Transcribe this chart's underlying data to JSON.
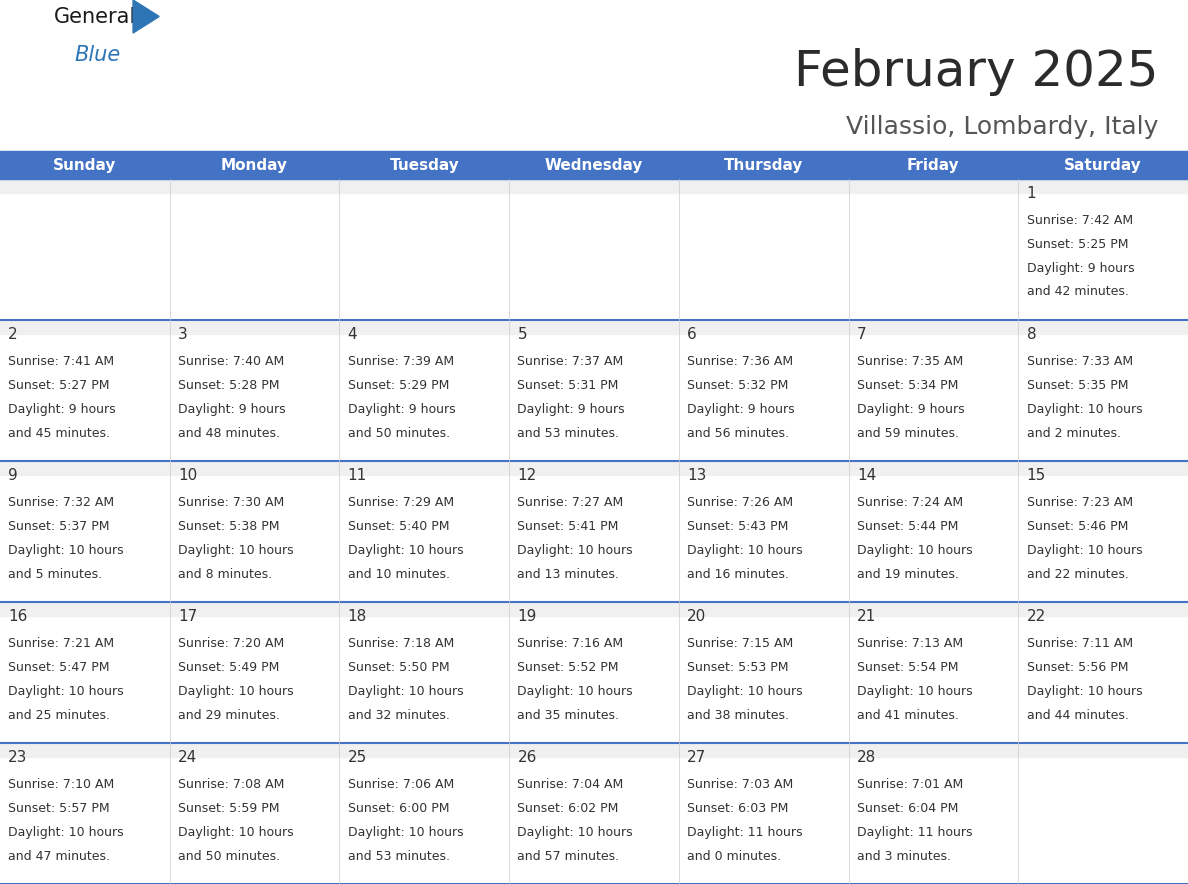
{
  "title": "February 2025",
  "subtitle": "Villassio, Lombardy, Italy",
  "header_bg": "#4472C4",
  "header_text_color": "#FFFFFF",
  "separator_color": "#4472C4",
  "cell_bg": "#FFFFFF",
  "cell_top_stripe": "#EFEFEF",
  "text_color": "#333333",
  "day_headers": [
    "Sunday",
    "Monday",
    "Tuesday",
    "Wednesday",
    "Thursday",
    "Friday",
    "Saturday"
  ],
  "days": [
    {
      "day": 1,
      "col": 6,
      "row": 0,
      "sunrise": "7:42 AM",
      "sunset": "5:25 PM",
      "daylight_h": "9 hours",
      "daylight_m": "42 minutes."
    },
    {
      "day": 2,
      "col": 0,
      "row": 1,
      "sunrise": "7:41 AM",
      "sunset": "5:27 PM",
      "daylight_h": "9 hours",
      "daylight_m": "45 minutes."
    },
    {
      "day": 3,
      "col": 1,
      "row": 1,
      "sunrise": "7:40 AM",
      "sunset": "5:28 PM",
      "daylight_h": "9 hours",
      "daylight_m": "48 minutes."
    },
    {
      "day": 4,
      "col": 2,
      "row": 1,
      "sunrise": "7:39 AM",
      "sunset": "5:29 PM",
      "daylight_h": "9 hours",
      "daylight_m": "50 minutes."
    },
    {
      "day": 5,
      "col": 3,
      "row": 1,
      "sunrise": "7:37 AM",
      "sunset": "5:31 PM",
      "daylight_h": "9 hours",
      "daylight_m": "53 minutes."
    },
    {
      "day": 6,
      "col": 4,
      "row": 1,
      "sunrise": "7:36 AM",
      "sunset": "5:32 PM",
      "daylight_h": "9 hours",
      "daylight_m": "56 minutes."
    },
    {
      "day": 7,
      "col": 5,
      "row": 1,
      "sunrise": "7:35 AM",
      "sunset": "5:34 PM",
      "daylight_h": "9 hours",
      "daylight_m": "59 minutes."
    },
    {
      "day": 8,
      "col": 6,
      "row": 1,
      "sunrise": "7:33 AM",
      "sunset": "5:35 PM",
      "daylight_h": "10 hours",
      "daylight_m": "2 minutes."
    },
    {
      "day": 9,
      "col": 0,
      "row": 2,
      "sunrise": "7:32 AM",
      "sunset": "5:37 PM",
      "daylight_h": "10 hours",
      "daylight_m": "5 minutes."
    },
    {
      "day": 10,
      "col": 1,
      "row": 2,
      "sunrise": "7:30 AM",
      "sunset": "5:38 PM",
      "daylight_h": "10 hours",
      "daylight_m": "8 minutes."
    },
    {
      "day": 11,
      "col": 2,
      "row": 2,
      "sunrise": "7:29 AM",
      "sunset": "5:40 PM",
      "daylight_h": "10 hours",
      "daylight_m": "10 minutes."
    },
    {
      "day": 12,
      "col": 3,
      "row": 2,
      "sunrise": "7:27 AM",
      "sunset": "5:41 PM",
      "daylight_h": "10 hours",
      "daylight_m": "13 minutes."
    },
    {
      "day": 13,
      "col": 4,
      "row": 2,
      "sunrise": "7:26 AM",
      "sunset": "5:43 PM",
      "daylight_h": "10 hours",
      "daylight_m": "16 minutes."
    },
    {
      "day": 14,
      "col": 5,
      "row": 2,
      "sunrise": "7:24 AM",
      "sunset": "5:44 PM",
      "daylight_h": "10 hours",
      "daylight_m": "19 minutes."
    },
    {
      "day": 15,
      "col": 6,
      "row": 2,
      "sunrise": "7:23 AM",
      "sunset": "5:46 PM",
      "daylight_h": "10 hours",
      "daylight_m": "22 minutes."
    },
    {
      "day": 16,
      "col": 0,
      "row": 3,
      "sunrise": "7:21 AM",
      "sunset": "5:47 PM",
      "daylight_h": "10 hours",
      "daylight_m": "25 minutes."
    },
    {
      "day": 17,
      "col": 1,
      "row": 3,
      "sunrise": "7:20 AM",
      "sunset": "5:49 PM",
      "daylight_h": "10 hours",
      "daylight_m": "29 minutes."
    },
    {
      "day": 18,
      "col": 2,
      "row": 3,
      "sunrise": "7:18 AM",
      "sunset": "5:50 PM",
      "daylight_h": "10 hours",
      "daylight_m": "32 minutes."
    },
    {
      "day": 19,
      "col": 3,
      "row": 3,
      "sunrise": "7:16 AM",
      "sunset": "5:52 PM",
      "daylight_h": "10 hours",
      "daylight_m": "35 minutes."
    },
    {
      "day": 20,
      "col": 4,
      "row": 3,
      "sunrise": "7:15 AM",
      "sunset": "5:53 PM",
      "daylight_h": "10 hours",
      "daylight_m": "38 minutes."
    },
    {
      "day": 21,
      "col": 5,
      "row": 3,
      "sunrise": "7:13 AM",
      "sunset": "5:54 PM",
      "daylight_h": "10 hours",
      "daylight_m": "41 minutes."
    },
    {
      "day": 22,
      "col": 6,
      "row": 3,
      "sunrise": "7:11 AM",
      "sunset": "5:56 PM",
      "daylight_h": "10 hours",
      "daylight_m": "44 minutes."
    },
    {
      "day": 23,
      "col": 0,
      "row": 4,
      "sunrise": "7:10 AM",
      "sunset": "5:57 PM",
      "daylight_h": "10 hours",
      "daylight_m": "47 minutes."
    },
    {
      "day": 24,
      "col": 1,
      "row": 4,
      "sunrise": "7:08 AM",
      "sunset": "5:59 PM",
      "daylight_h": "10 hours",
      "daylight_m": "50 minutes."
    },
    {
      "day": 25,
      "col": 2,
      "row": 4,
      "sunrise": "7:06 AM",
      "sunset": "6:00 PM",
      "daylight_h": "10 hours",
      "daylight_m": "53 minutes."
    },
    {
      "day": 26,
      "col": 3,
      "row": 4,
      "sunrise": "7:04 AM",
      "sunset": "6:02 PM",
      "daylight_h": "10 hours",
      "daylight_m": "57 minutes."
    },
    {
      "day": 27,
      "col": 4,
      "row": 4,
      "sunrise": "7:03 AM",
      "sunset": "6:03 PM",
      "daylight_h": "11 hours",
      "daylight_m": "0 minutes."
    },
    {
      "day": 28,
      "col": 5,
      "row": 4,
      "sunrise": "7:01 AM",
      "sunset": "6:04 PM",
      "daylight_h": "11 hours",
      "daylight_m": "3 minutes."
    }
  ],
  "logo_general_color": "#1a1a1a",
  "logo_blue_color": "#2E75B6",
  "logo_triangle_color": "#2E75B6",
  "title_fontsize": 36,
  "subtitle_fontsize": 18,
  "header_fontsize": 11,
  "day_num_fontsize": 11,
  "cell_text_fontsize": 9
}
